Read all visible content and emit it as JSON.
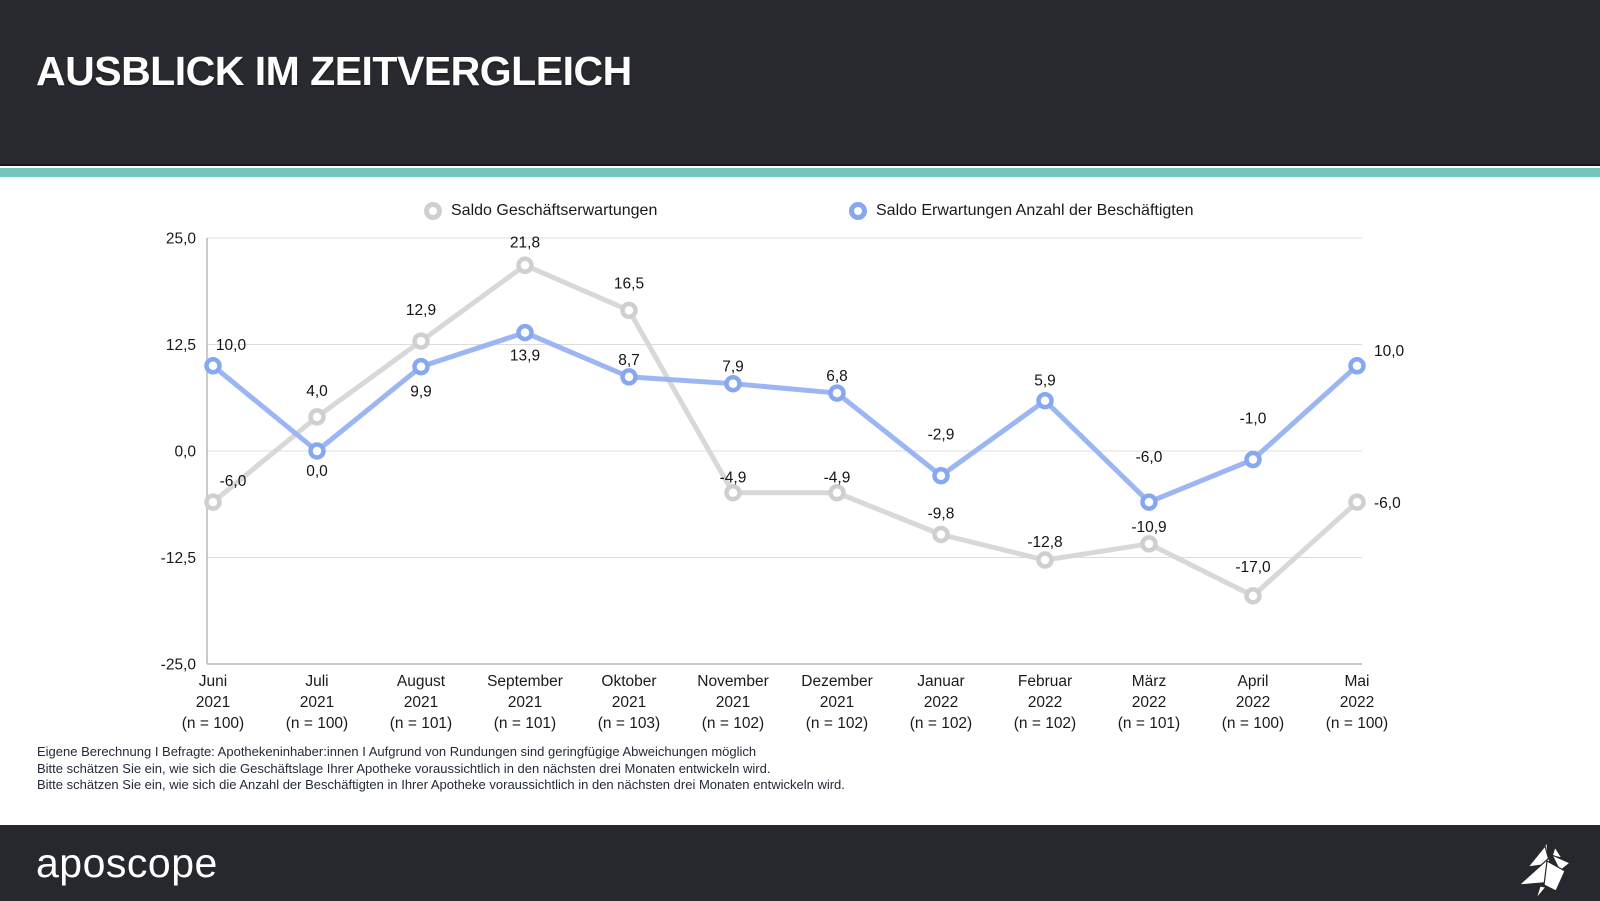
{
  "header": {
    "title": "AUSBLICK IM ZEITVERGLEICH"
  },
  "chart_data": {
    "type": "line",
    "legend_position": "top",
    "grid": true,
    "ylim": [
      -25,
      25
    ],
    "y_ticks": [
      {
        "label": "25,0",
        "value": 25
      },
      {
        "label": "12,5",
        "value": 12.5
      },
      {
        "label": "0,0",
        "value": 0
      },
      {
        "label": "-12,5",
        "value": -12.5
      },
      {
        "label": "-25,0",
        "value": -25
      }
    ],
    "categories": [
      {
        "month": "Juni",
        "year": "2021",
        "n": "(n = 100)"
      },
      {
        "month": "Juli",
        "year": "2021",
        "n": "(n = 100)"
      },
      {
        "month": "August",
        "year": "2021",
        "n": "(n = 101)"
      },
      {
        "month": "September",
        "year": "2021",
        "n": "(n = 101)"
      },
      {
        "month": "Oktober",
        "year": "2021",
        "n": "(n = 103)"
      },
      {
        "month": "November",
        "year": "2021",
        "n": "(n = 102)"
      },
      {
        "month": "Dezember",
        "year": "2021",
        "n": "(n = 102)"
      },
      {
        "month": "Januar",
        "year": "2022",
        "n": "(n = 102)"
      },
      {
        "month": "Februar",
        "year": "2022",
        "n": "(n = 102)"
      },
      {
        "month": "März",
        "year": "2022",
        "n": "(n = 101)"
      },
      {
        "month": "April",
        "year": "2022",
        "n": "(n = 100)"
      },
      {
        "month": "Mai",
        "year": "2022",
        "n": "(n = 100)"
      }
    ],
    "series": [
      {
        "name": "Saldo Geschäftserwartungen",
        "color": "#d8d8d8",
        "marker_color": "#cfcfcf",
        "values": [
          -6.0,
          4.0,
          12.9,
          21.8,
          16.5,
          -4.9,
          -4.9,
          -9.8,
          -12.8,
          -10.9,
          -17.0,
          -6.0
        ],
        "labels": [
          "-6,0",
          "4,0",
          "12,9",
          "21,8",
          "16,5",
          "-4,9",
          "-4,9",
          "-9,8",
          "-12,8",
          "-10,9",
          "-17,0",
          "-6,0"
        ]
      },
      {
        "name": "Saldo Erwartungen Anzahl der Beschäftigten",
        "color": "#9cb6f3",
        "marker_color": "#86a8f0",
        "values": [
          10.0,
          0.0,
          9.9,
          13.9,
          8.7,
          7.9,
          6.8,
          -2.9,
          5.9,
          -6.0,
          -1.0,
          10.0
        ],
        "labels": [
          "10,0",
          "0,0",
          "9,9",
          "13,9",
          "8,7",
          "7,9",
          "6,8",
          "-2,9",
          "5,9",
          "-6,0",
          "-1,0",
          "10,0"
        ]
      }
    ]
  },
  "footnotes": [
    "Eigene Berechnung I Befragte: Apothekeninhaber:innen I Aufgrund von Rundungen sind geringfügige Abweichungen möglich",
    "Bitte schätzen Sie ein, wie sich die Geschäftslage Ihrer Apotheke voraussichtlich in den nächsten drei Monaten entwickeln wird.",
    "Bitte schätzen Sie ein, wie sich die Anzahl der Beschäftigten in Ihrer Apotheke voraussichtlich in den nächsten drei Monaten entwickeln wird."
  ],
  "footer": {
    "logo_text": "aposcope"
  },
  "colors": {
    "header_bg": "#292a2f",
    "accent_stripe": "#73c6b9",
    "footer_bg": "#27282d",
    "gridline": "#dcdcdc",
    "axis": "#b9b9b9"
  }
}
